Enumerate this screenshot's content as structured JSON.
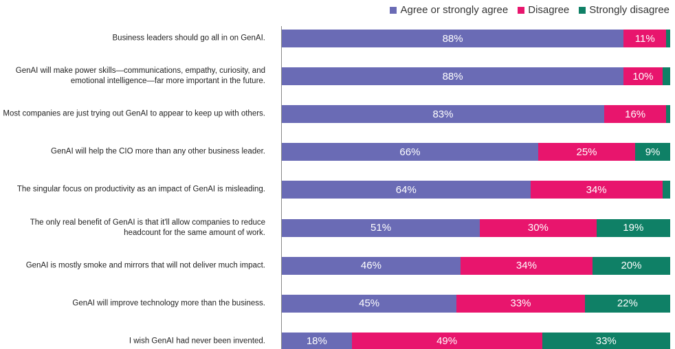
{
  "chart_data": {
    "type": "stacked_bar_horizontal",
    "categories": [
      "Business leaders should go all in on GenAI.",
      "GenAI will make power skills—communications, empathy, curiosity, and emotional intelligence—far more important in the future.",
      "Most companies are just trying out GenAI to appear to keep up with others.",
      "GenAI will help the CIO more than any other business leader.",
      "The singular focus on productivity as an impact of GenAI is misleading.",
      "The only real benefit of GenAI is that it'll allow companies to reduce headcount for the same amount of work.",
      "GenAI is mostly smoke and mirrors that will not deliver much impact.",
      "GenAI will improve technology more than the business.",
      "I wish GenAI had never been invented."
    ],
    "series": [
      {
        "name": "Agree or strongly agree",
        "color": "#6a6bb5",
        "values": [
          88,
          88,
          83,
          66,
          64,
          51,
          46,
          45,
          18
        ],
        "value_labels": [
          "88%",
          "88%",
          "83%",
          "66%",
          "64%",
          "51%",
          "46%",
          "45%",
          "18%"
        ]
      },
      {
        "name": "Disagree",
        "color": "#e8156d",
        "values": [
          11,
          10,
          16,
          25,
          34,
          30,
          34,
          33,
          49
        ],
        "value_labels": [
          "11%",
          "10%",
          "16%",
          "25%",
          "34%",
          "30%",
          "34%",
          "33%",
          "49%"
        ]
      },
      {
        "name": "Strongly disagree",
        "color": "#0f8066",
        "values": [
          1,
          2,
          1,
          9,
          2,
          19,
          20,
          22,
          33
        ],
        "value_labels": [
          null,
          null,
          null,
          "9%",
          null,
          "19%",
          "20%",
          "22%",
          "33%"
        ]
      }
    ],
    "xlim": [
      0,
      100
    ],
    "legend": "top-right"
  }
}
